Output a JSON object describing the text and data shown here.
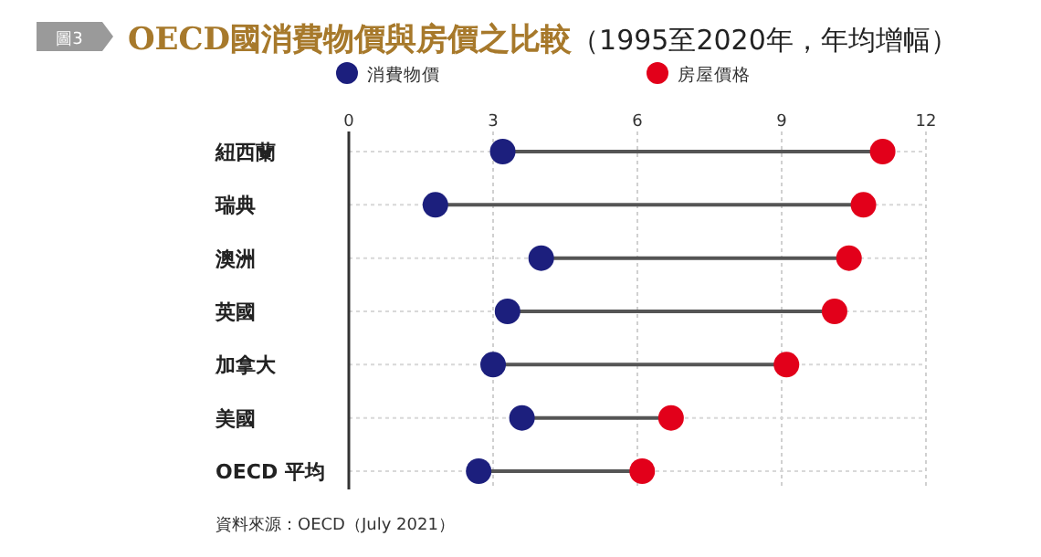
{
  "chart_data": {
    "type": "scatter",
    "orientation": "horizontal",
    "title": "**OECD國消費物價與房價之比較**（1995至2020年，年均增幅）",
    "categories": [
      "紐西蘭",
      "瑞典",
      "澳洲",
      "英國",
      "加拿大",
      "美國",
      "OECD 平均"
    ],
    "series": [
      {
        "name": "消費物價",
        "color": "#1c1f7d",
        "values": [
          3.2,
          1.8,
          4.0,
          3.3,
          3.0,
          3.6,
          2.7
        ]
      },
      {
        "name": "房屋價格",
        "color": "#e2001a",
        "values": [
          11.1,
          10.7,
          10.4,
          10.1,
          9.1,
          6.7,
          6.1
        ]
      }
    ],
    "xlim": [
      0,
      12
    ],
    "xticks": [
      0,
      3,
      6,
      9,
      12
    ],
    "grid": true,
    "legend": "top",
    "marker": "circle",
    "annotations": [
      "圖3",
      "資料來源：OECD（July 2021）"
    ]
  }
}
